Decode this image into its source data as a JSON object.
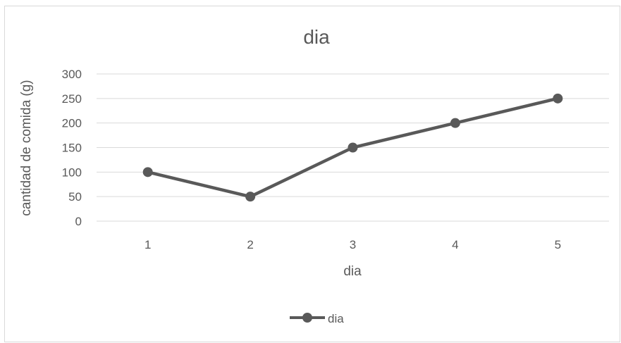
{
  "chart_data": {
    "type": "line",
    "title": "dia",
    "xlabel": "dia",
    "ylabel": "cantidad de comida (g)",
    "categories": [
      "1",
      "2",
      "3",
      "4",
      "5"
    ],
    "ylim": [
      0,
      300
    ],
    "yticks": [
      0,
      50,
      100,
      150,
      200,
      250,
      300
    ],
    "grid": true,
    "legend": "bottom",
    "series": [
      {
        "name": "dia",
        "values": [
          100,
          50,
          150,
          200,
          250
        ],
        "color": "#595959"
      }
    ]
  }
}
